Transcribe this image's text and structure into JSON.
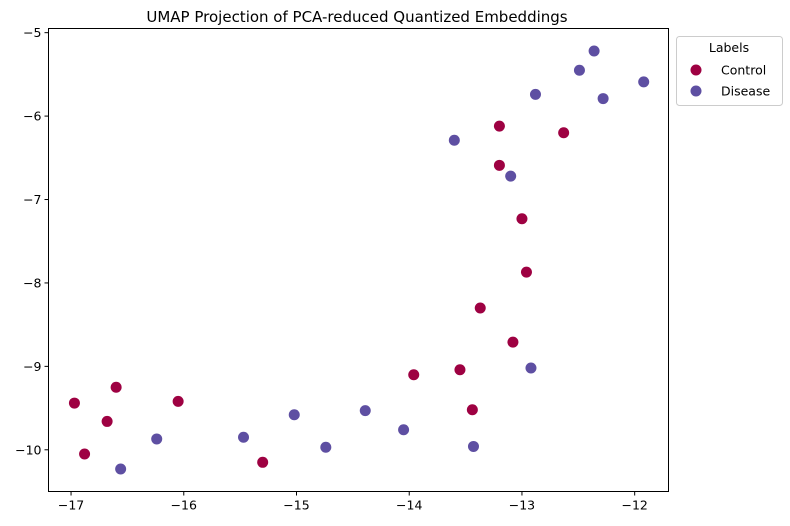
{
  "chart_data": {
    "type": "scatter",
    "title": "UMAP Projection of PCA-reduced Quantized Embeddings",
    "xlabel": "",
    "ylabel": "",
    "xlim": [
      -17.2,
      -11.7
    ],
    "ylim": [
      -10.5,
      -4.95
    ],
    "xticks": [
      -17,
      -16,
      -15,
      -14,
      -13,
      -12
    ],
    "yticks": [
      -5,
      -6,
      -7,
      -8,
      -9,
      -10
    ],
    "tick_labels_x": [
      "−17",
      "−16",
      "−15",
      "−14",
      "−13",
      "−12"
    ],
    "tick_labels_y": [
      "−5",
      "−6",
      "−7",
      "−8",
      "−9",
      "−10"
    ],
    "grid": false,
    "legend": {
      "title": "Labels",
      "placement": "upper-right-outside"
    },
    "series": [
      {
        "name": "Control",
        "color": "#9e0142",
        "points": [
          [
            -16.97,
            -9.44
          ],
          [
            -16.88,
            -10.05
          ],
          [
            -16.68,
            -9.66
          ],
          [
            -16.6,
            -9.25
          ],
          [
            -16.05,
            -9.42
          ],
          [
            -15.3,
            -10.15
          ],
          [
            -13.96,
            -9.1
          ],
          [
            -13.55,
            -9.04
          ],
          [
            -13.44,
            -9.52
          ],
          [
            -13.37,
            -8.3
          ],
          [
            -13.2,
            -6.12
          ],
          [
            -13.2,
            -6.59
          ],
          [
            -13.08,
            -8.71
          ],
          [
            -13.0,
            -7.23
          ],
          [
            -12.96,
            -7.87
          ],
          [
            -12.63,
            -6.2
          ]
        ]
      },
      {
        "name": "Disease",
        "color": "#5e4fa2",
        "points": [
          [
            -16.56,
            -10.23
          ],
          [
            -16.24,
            -9.87
          ],
          [
            -15.47,
            -9.85
          ],
          [
            -15.02,
            -9.58
          ],
          [
            -14.74,
            -9.97
          ],
          [
            -14.39,
            -9.53
          ],
          [
            -14.05,
            -9.76
          ],
          [
            -13.6,
            -6.29
          ],
          [
            -13.43,
            -9.96
          ],
          [
            -13.1,
            -6.72
          ],
          [
            -12.92,
            -9.02
          ],
          [
            -12.88,
            -5.74
          ],
          [
            -12.49,
            -5.45
          ],
          [
            -12.36,
            -5.22
          ],
          [
            -12.28,
            -5.79
          ],
          [
            -11.92,
            -5.59
          ]
        ]
      }
    ]
  }
}
